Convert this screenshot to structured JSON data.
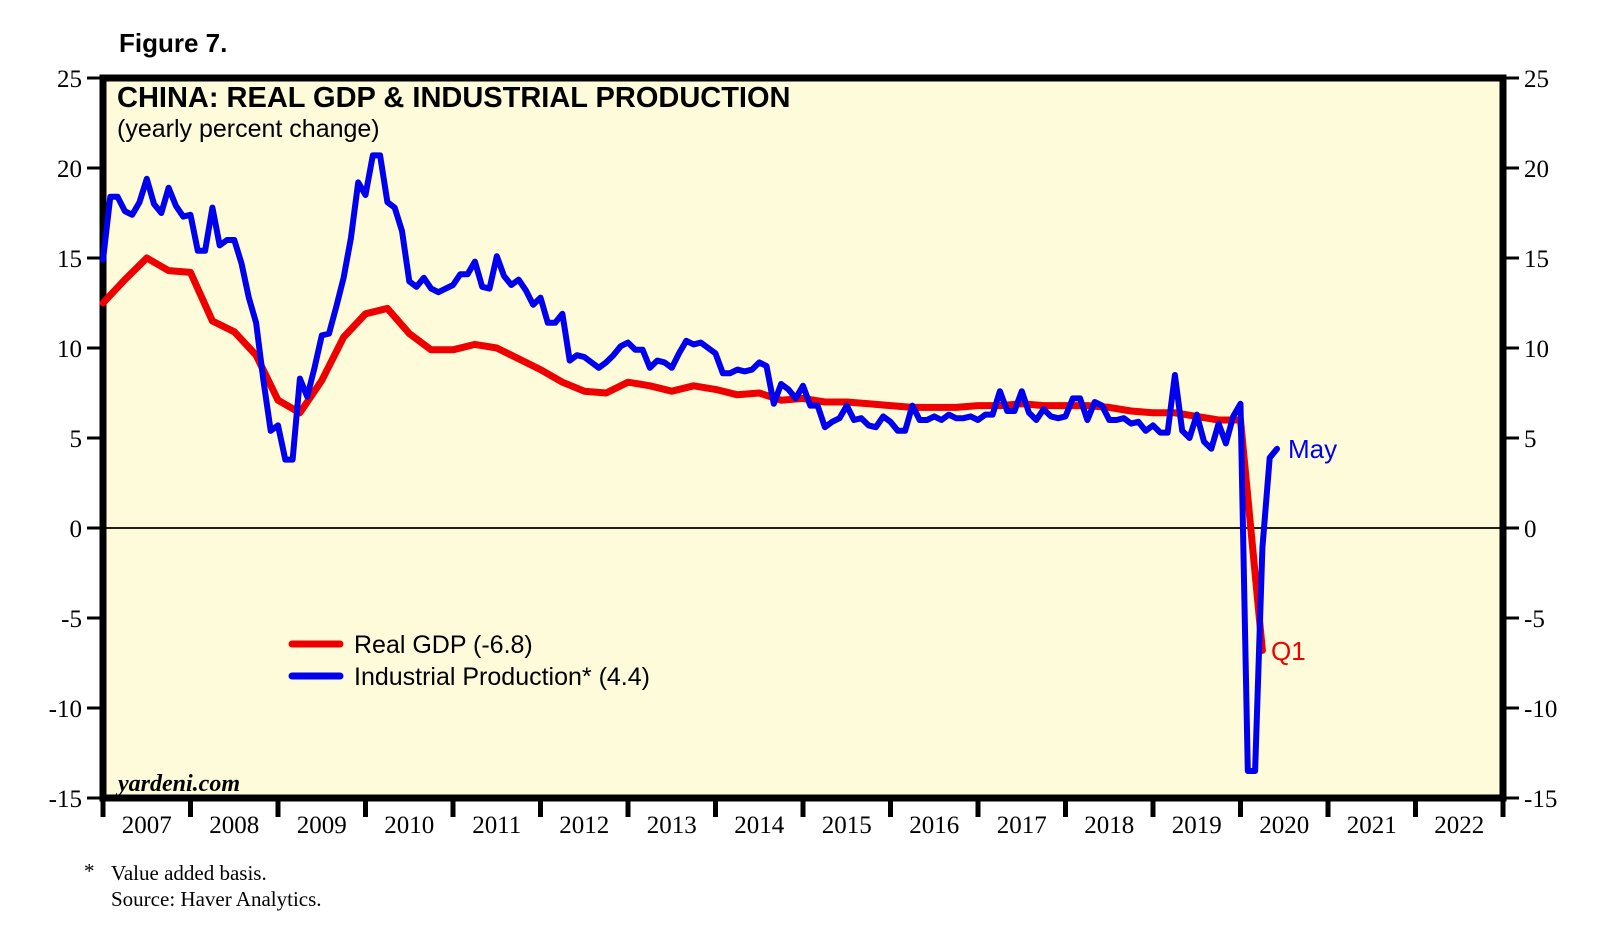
{
  "figure_label": "Figure 7.",
  "chart": {
    "title": "CHINA: REAL GDP & INDUSTRIAL PRODUCTION",
    "subtitle": "(yearly percent change)",
    "watermark": "yardeni.com",
    "plot_bg_color": "#fdfbd9",
    "legend": {
      "items": [
        {
          "label": "Real GDP (-6.8)",
          "color": "#ee0000"
        },
        {
          "label": "Industrial Production* (4.4)",
          "color": "#0000ee"
        }
      ]
    },
    "annotations": {
      "may_label": "May",
      "q1_label": "Q1",
      "may_color": "#0000ee",
      "q1_color": "#ee0000"
    },
    "footnote": {
      "marker": "*",
      "line1": "Value added basis.",
      "line2": "Source: Haver Analytics."
    }
  },
  "y_axis": {
    "ticks": [
      25,
      20,
      15,
      10,
      5,
      0,
      -5,
      -10,
      -15
    ]
  },
  "x_axis": {
    "years": [
      "2007",
      "2008",
      "2009",
      "2010",
      "2011",
      "2012",
      "2013",
      "2014",
      "2015",
      "2016",
      "2017",
      "2018",
      "2019",
      "2020",
      "2021",
      "2022"
    ]
  },
  "chart_data": {
    "type": "line",
    "title": "CHINA: REAL GDP & INDUSTRIAL PRODUCTION",
    "ylabel": "yearly percent change",
    "ylim": [
      -15,
      25
    ],
    "x_range_years": [
      2007,
      2022
    ],
    "grid": "zero-line-only",
    "legend_position": "inside-left-lower",
    "series": [
      {
        "name": "Real GDP",
        "legend_label": "Real GDP (-6.8)",
        "color": "#ee0000",
        "frequency": "quarterly",
        "first_period": "2006Q4",
        "last_period": "2020Q1",
        "final_value": -6.8,
        "values": [
          12.5,
          13.8,
          15.0,
          14.3,
          14.2,
          11.5,
          10.9,
          9.6,
          7.1,
          6.4,
          8.2,
          10.6,
          11.9,
          12.2,
          10.8,
          9.9,
          9.9,
          10.2,
          10.0,
          9.4,
          8.8,
          8.1,
          7.6,
          7.5,
          8.1,
          7.9,
          7.6,
          7.9,
          7.7,
          7.4,
          7.5,
          7.1,
          7.2,
          7.0,
          7.0,
          6.9,
          6.8,
          6.7,
          6.7,
          6.7,
          6.8,
          6.8,
          6.9,
          6.8,
          6.8,
          6.8,
          6.7,
          6.5,
          6.4,
          6.4,
          6.2,
          6.0,
          6.0,
          -6.8
        ]
      },
      {
        "name": "Industrial Production (value added basis)",
        "legend_label": "Industrial Production* (4.4)",
        "color": "#0000ee",
        "frequency": "monthly",
        "first_period": "2006-12",
        "last_period": "2020-05",
        "final_value": 4.4,
        "note": "Jan-Feb reported as combined value (plotted flat across both months)",
        "values": [
          14.9,
          18.4,
          18.4,
          17.6,
          17.4,
          18.1,
          19.4,
          18.0,
          17.5,
          18.9,
          17.9,
          17.3,
          17.4,
          15.4,
          15.4,
          17.8,
          15.7,
          16.0,
          16.0,
          14.7,
          12.8,
          11.4,
          8.2,
          5.4,
          5.7,
          3.8,
          3.8,
          8.3,
          7.3,
          8.9,
          10.7,
          10.8,
          12.3,
          13.9,
          16.1,
          19.2,
          18.5,
          20.7,
          20.7,
          18.1,
          17.8,
          16.5,
          13.7,
          13.4,
          13.9,
          13.3,
          13.1,
          13.3,
          13.5,
          14.1,
          14.1,
          14.8,
          13.4,
          13.3,
          15.1,
          14.0,
          13.5,
          13.8,
          13.2,
          12.4,
          12.8,
          11.4,
          11.4,
          11.9,
          9.3,
          9.6,
          9.5,
          9.2,
          8.9,
          9.2,
          9.6,
          10.1,
          10.3,
          9.9,
          9.9,
          8.9,
          9.3,
          9.2,
          8.9,
          9.7,
          10.4,
          10.2,
          10.3,
          10.0,
          9.7,
          8.6,
          8.6,
          8.8,
          8.7,
          8.8,
          9.2,
          9.0,
          6.9,
          8.0,
          7.7,
          7.2,
          7.9,
          6.8,
          6.8,
          5.6,
          5.9,
          6.1,
          6.8,
          6.0,
          6.1,
          5.7,
          5.6,
          6.2,
          5.9,
          5.4,
          5.4,
          6.8,
          6.0,
          6.0,
          6.2,
          6.0,
          6.3,
          6.1,
          6.1,
          6.2,
          6.0,
          6.3,
          6.3,
          7.6,
          6.5,
          6.5,
          7.6,
          6.4,
          6.0,
          6.6,
          6.2,
          6.1,
          6.2,
          7.2,
          7.2,
          6.0,
          7.0,
          6.8,
          6.0,
          6.0,
          6.1,
          5.8,
          5.9,
          5.4,
          5.7,
          5.3,
          5.3,
          8.5,
          5.4,
          5.0,
          6.3,
          4.8,
          4.4,
          5.8,
          4.7,
          6.2,
          6.9,
          -13.5,
          -13.5,
          -1.1,
          3.9,
          4.4
        ]
      }
    ]
  }
}
